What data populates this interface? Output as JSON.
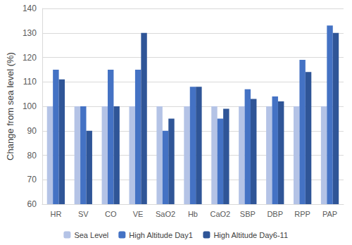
{
  "chart_data": {
    "type": "bar",
    "y_label": "Change from sea level (%)",
    "categories": [
      "HR",
      "SV",
      "CO",
      "VE",
      "SaO2",
      "Hb",
      "CaO2",
      "SBP",
      "DBP",
      "RPP",
      "PAP"
    ],
    "series": [
      {
        "name": "Sea Level",
        "color": "#b4c3e6",
        "values": [
          100,
          100,
          100,
          100,
          100,
          100,
          100,
          100,
          100,
          100,
          100
        ]
      },
      {
        "name": "High Altitude Day1",
        "color": "#4472c4",
        "values": [
          115,
          100,
          115,
          115,
          90,
          108,
          95,
          107,
          104,
          119,
          133
        ]
      },
      {
        "name": "High Altitude Day6-11",
        "color": "#2f5597",
        "values": [
          111,
          90,
          100,
          130,
          95,
          108,
          99,
          103,
          102,
          114,
          130
        ]
      }
    ],
    "ylim": [
      60,
      140
    ],
    "yticks": [
      60,
      70,
      80,
      90,
      100,
      110,
      120,
      130,
      140
    ],
    "grid": true,
    "legend": "bottom"
  }
}
